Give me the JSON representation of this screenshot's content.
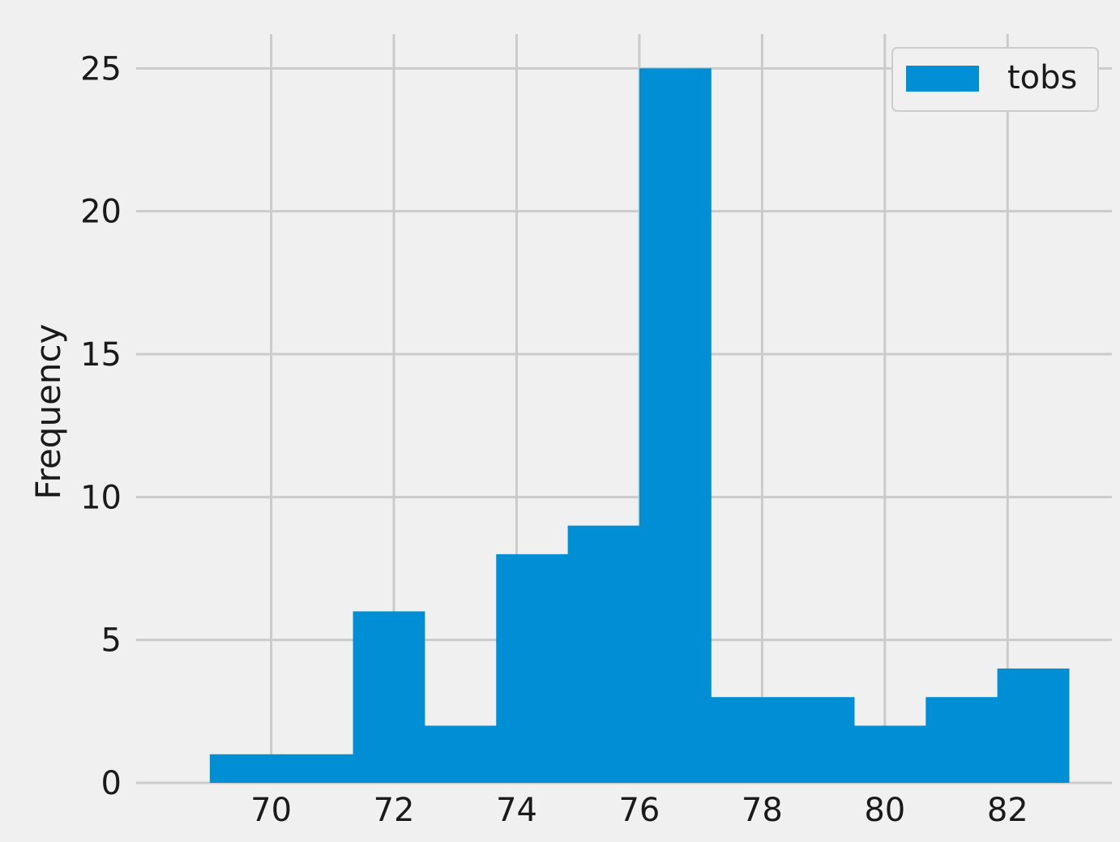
{
  "chart_data": {
    "type": "bar",
    "subtype": "histogram",
    "title": "",
    "xlabel": "",
    "ylabel": "Frequency",
    "bin_edges": [
      69.0,
      70.1667,
      71.3333,
      72.5,
      73.6667,
      74.8333,
      76.0,
      77.1667,
      78.3333,
      79.5,
      80.6667,
      81.8333,
      83.0
    ],
    "values": [
      1,
      1,
      6,
      2,
      8,
      9,
      25,
      3,
      3,
      2,
      3,
      4
    ],
    "xlim": [
      67.8,
      83.7
    ],
    "ylim": [
      0,
      26.2
    ],
    "x_ticks": [
      70,
      72,
      74,
      76,
      78,
      80,
      82
    ],
    "y_ticks": [
      0,
      5,
      10,
      15,
      20,
      25
    ],
    "grid": true,
    "series": [
      {
        "name": "tobs",
        "color": "#008fd5"
      }
    ],
    "legend": {
      "position": "top-right",
      "label": "tobs"
    }
  },
  "colors": {
    "background": "#f0f0f0",
    "bar": "#008fd5",
    "grid": "#cbcbcb"
  }
}
